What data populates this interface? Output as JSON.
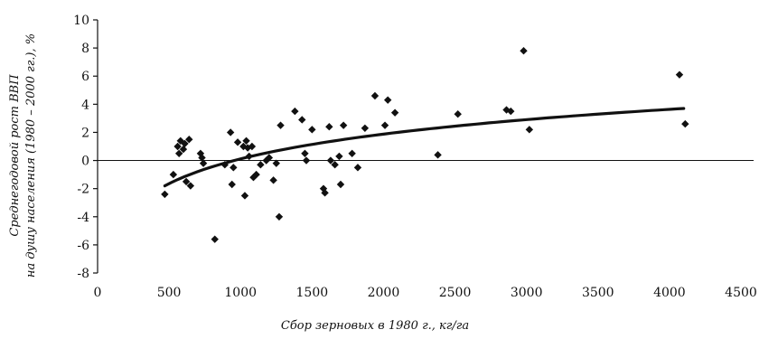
{
  "chart_data": {
    "type": "scatter",
    "xlabel": "Сбор зерновых в 1980 г., кг/га",
    "ylabel_lines": [
      "Среднегодовой рост ВВП",
      "на душу населения (1980 – 2000 гг.), %"
    ],
    "xlim": [
      0,
      4500
    ],
    "ylim": [
      -8,
      10
    ],
    "x_ticks": [
      0,
      500,
      1000,
      1500,
      2000,
      2500,
      3000,
      3500,
      4000,
      4500
    ],
    "y_ticks": [
      -8,
      -6,
      -4,
      -2,
      0,
      2,
      4,
      6,
      8,
      10
    ],
    "x_tick_labels": [
      "0",
      "500",
      "1000",
      "1500",
      "2000",
      "2500",
      "3000",
      "3500",
      "4000",
      "4500"
    ],
    "y_tick_labels": [
      "-8",
      "-6",
      "-4",
      "-2",
      "0",
      "2",
      "4",
      "6",
      "8",
      "10"
    ],
    "zero_line": true,
    "grid": false,
    "colors": {
      "points": "#111111",
      "trend": "#111111",
      "axes": "#111111"
    },
    "points": [
      {
        "x": 470,
        "y": -2.4
      },
      {
        "x": 530,
        "y": -1.0
      },
      {
        "x": 560,
        "y": 1.0
      },
      {
        "x": 570,
        "y": 0.5
      },
      {
        "x": 580,
        "y": 1.4
      },
      {
        "x": 600,
        "y": 0.8
      },
      {
        "x": 610,
        "y": 1.2
      },
      {
        "x": 620,
        "y": -1.5
      },
      {
        "x": 640,
        "y": 1.5
      },
      {
        "x": 650,
        "y": -1.8
      },
      {
        "x": 720,
        "y": 0.5
      },
      {
        "x": 730,
        "y": 0.2
      },
      {
        "x": 740,
        "y": -0.2
      },
      {
        "x": 820,
        "y": -5.6
      },
      {
        "x": 890,
        "y": -0.3
      },
      {
        "x": 930,
        "y": 2.0
      },
      {
        "x": 940,
        "y": -1.7
      },
      {
        "x": 950,
        "y": -0.5
      },
      {
        "x": 980,
        "y": 1.3
      },
      {
        "x": 1020,
        "y": 1.0
      },
      {
        "x": 1030,
        "y": -2.5
      },
      {
        "x": 1040,
        "y": 1.4
      },
      {
        "x": 1050,
        "y": 0.9
      },
      {
        "x": 1060,
        "y": 0.3
      },
      {
        "x": 1080,
        "y": 1.0
      },
      {
        "x": 1090,
        "y": -1.2
      },
      {
        "x": 1110,
        "y": -1.0
      },
      {
        "x": 1140,
        "y": -0.3
      },
      {
        "x": 1180,
        "y": 0.0
      },
      {
        "x": 1200,
        "y": 0.2
      },
      {
        "x": 1230,
        "y": -1.4
      },
      {
        "x": 1250,
        "y": -0.2
      },
      {
        "x": 1270,
        "y": -4.0
      },
      {
        "x": 1280,
        "y": 2.5
      },
      {
        "x": 1380,
        "y": 3.5
      },
      {
        "x": 1430,
        "y": 2.9
      },
      {
        "x": 1450,
        "y": 0.5
      },
      {
        "x": 1460,
        "y": 0.0
      },
      {
        "x": 1500,
        "y": 2.2
      },
      {
        "x": 1580,
        "y": -2.0
      },
      {
        "x": 1590,
        "y": -2.3
      },
      {
        "x": 1620,
        "y": 2.4
      },
      {
        "x": 1630,
        "y": 0.0
      },
      {
        "x": 1660,
        "y": -0.3
      },
      {
        "x": 1690,
        "y": 0.3
      },
      {
        "x": 1700,
        "y": -1.7
      },
      {
        "x": 1720,
        "y": 2.5
      },
      {
        "x": 1780,
        "y": 0.5
      },
      {
        "x": 1820,
        "y": -0.5
      },
      {
        "x": 1870,
        "y": 2.3
      },
      {
        "x": 1940,
        "y": 4.6
      },
      {
        "x": 2010,
        "y": 2.5
      },
      {
        "x": 2030,
        "y": 4.3
      },
      {
        "x": 2080,
        "y": 3.4
      },
      {
        "x": 2380,
        "y": 0.4
      },
      {
        "x": 2520,
        "y": 3.3
      },
      {
        "x": 2860,
        "y": 3.6
      },
      {
        "x": 2890,
        "y": 3.5
      },
      {
        "x": 2980,
        "y": 7.8
      },
      {
        "x": 3020,
        "y": 2.2
      },
      {
        "x": 4070,
        "y": 6.1
      },
      {
        "x": 4110,
        "y": 2.6
      }
    ],
    "trend": {
      "type": "logarithmic",
      "x_range": [
        470,
        4100
      ],
      "y_start": -1.8,
      "y_end": 3.7
    }
  }
}
